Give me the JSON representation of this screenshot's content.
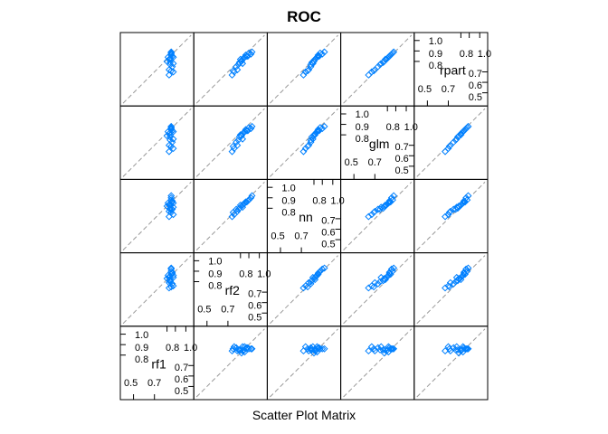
{
  "chart_data": {
    "type": "scatter",
    "title": "ROC",
    "xlabel": "Scatter Plot Matrix",
    "variables": [
      "rf1",
      "rf2",
      "nn",
      "glm",
      "rpart"
    ],
    "axis_range": [
      0.4,
      1.05
    ],
    "tick_labels_upper": [
      "0.8",
      "0.9",
      "1.0"
    ],
    "tick_labels_lower": [
      "0.5",
      "0.6",
      "0.7"
    ],
    "tick_label_mid": "0.7",
    "tick_label_low_corner": "0.5",
    "reference_line": "identity",
    "point_color": "#0080ff",
    "series": [
      {
        "values": [
          0.85,
          0.87,
          0.86,
          0.88,
          0.84,
          0.86,
          0.85,
          0.87,
          0.83,
          0.86,
          0.85,
          0.88,
          0.82,
          0.86,
          0.84,
          0.87,
          0.85,
          0.86,
          0.84,
          0.88
        ]
      },
      {
        "values": [
          0.82,
          0.88,
          0.9,
          0.84,
          0.79,
          0.92,
          0.85,
          0.78,
          0.86,
          0.93,
          0.81,
          0.76,
          0.83,
          0.87,
          0.74,
          0.89,
          0.8,
          0.75,
          0.84,
          0.86
        ]
      },
      {
        "values": [
          0.83,
          0.86,
          0.88,
          0.81,
          0.77,
          0.9,
          0.84,
          0.79,
          0.85,
          0.92,
          0.8,
          0.74,
          0.82,
          0.86,
          0.72,
          0.87,
          0.79,
          0.76,
          0.83,
          0.85
        ]
      },
      {
        "values": [
          0.8,
          0.84,
          0.87,
          0.76,
          0.7,
          0.86,
          0.82,
          0.73,
          0.83,
          0.88,
          0.78,
          0.67,
          0.79,
          0.85,
          0.64,
          0.84,
          0.75,
          0.69,
          0.81,
          0.83
        ]
      },
      {
        "values": [
          0.82,
          0.85,
          0.88,
          0.78,
          0.72,
          0.87,
          0.83,
          0.75,
          0.84,
          0.89,
          0.79,
          0.7,
          0.8,
          0.86,
          0.67,
          0.85,
          0.77,
          0.71,
          0.82,
          0.84
        ]
      }
    ]
  }
}
